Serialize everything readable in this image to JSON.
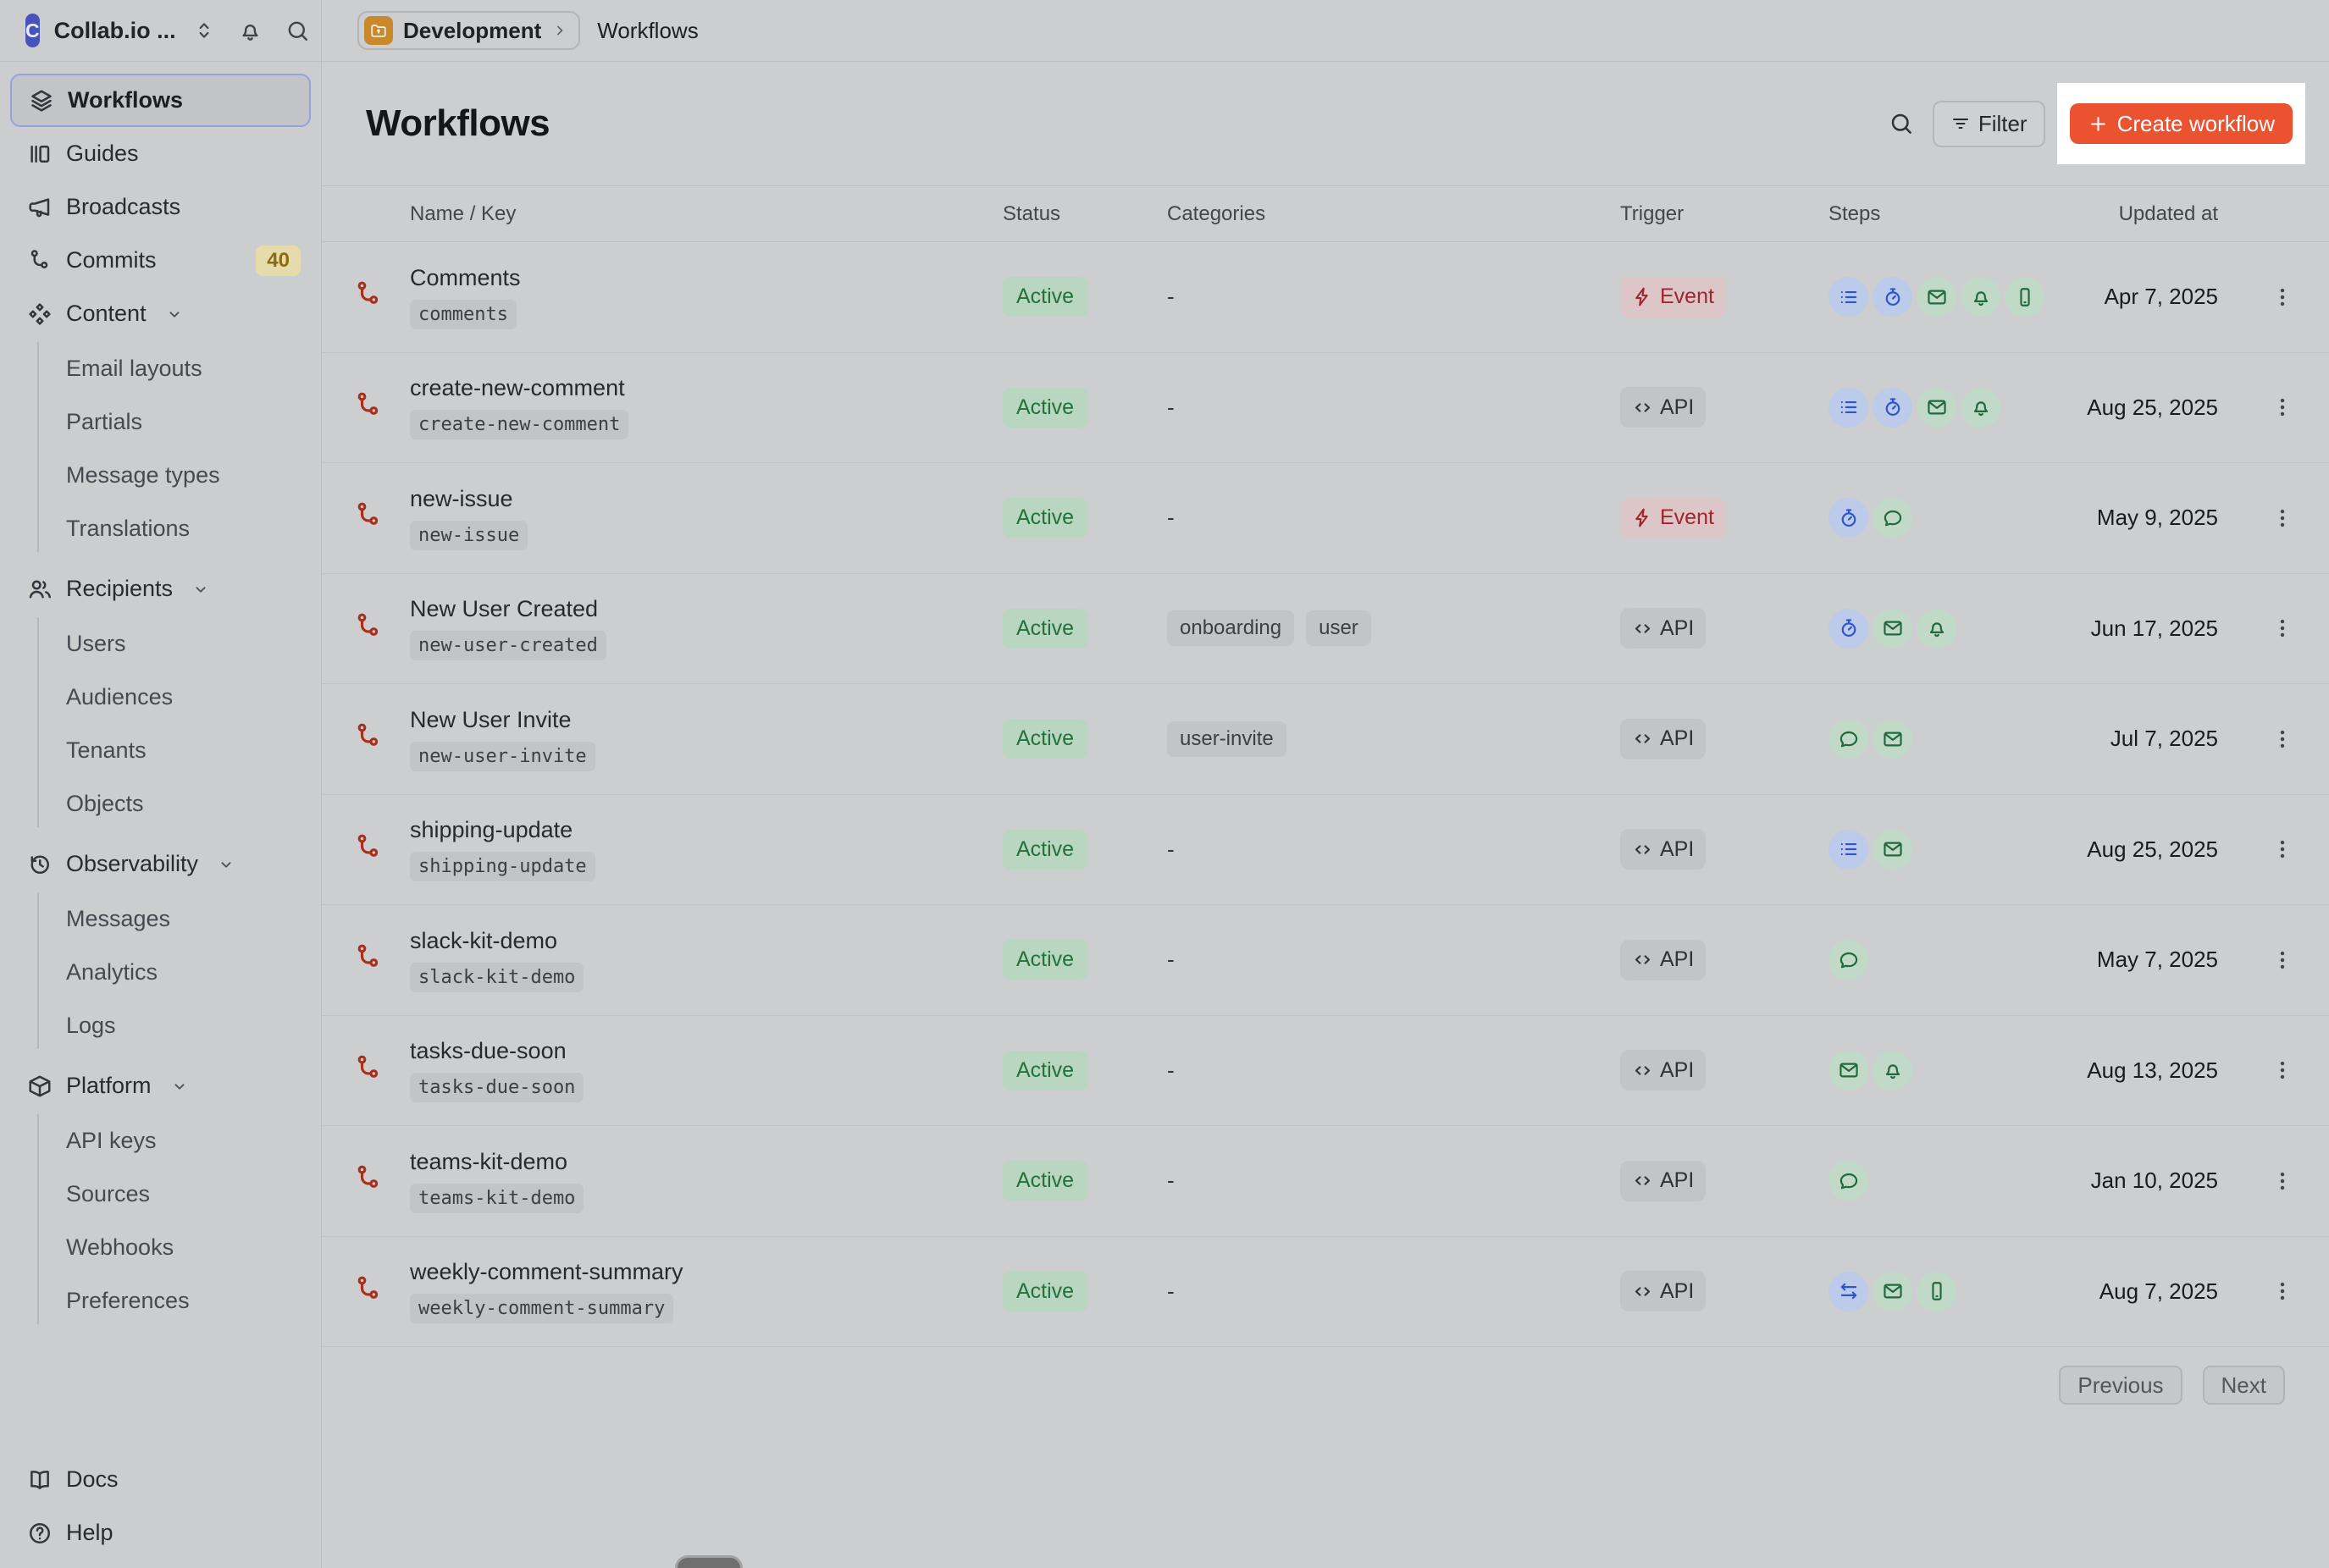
{
  "theme": {
    "accent_orange": "#eb5230",
    "spotlight_white": "#ffffff",
    "logo_blue": "#4653bc",
    "workflow_icon_red": "#ad2d18",
    "selected_border_blue": "#92a4da",
    "status_green_bg": "#b9d6c1",
    "status_green_text": "#227239",
    "event_red_bg": "#dcc6c8",
    "event_red_text": "#a1242f",
    "step_blue_bg": "#bccbe9",
    "step_blue_icon": "#2f55cc",
    "step_green_bg": "#c1d9c7",
    "step_green_icon": "#20693a",
    "commits_badge_bg": "#e6dcab",
    "commits_badge_text": "#8c6a10"
  },
  "sidebar": {
    "workspace": {
      "initial": "C",
      "name": "Collab.io ..."
    },
    "items": [
      {
        "label": "Workflows",
        "icon": "layers",
        "selected": true
      },
      {
        "label": "Guides",
        "icon": "guides"
      },
      {
        "label": "Broadcasts",
        "icon": "megaphone"
      },
      {
        "label": "Commits",
        "icon": "branch",
        "badge": "40"
      },
      {
        "label": "Content",
        "icon": "shapes",
        "expandable": true,
        "children": [
          "Email layouts",
          "Partials",
          "Message types",
          "Translations"
        ]
      },
      {
        "label": "Recipients",
        "icon": "users",
        "expandable": true,
        "children": [
          "Users",
          "Audiences",
          "Tenants",
          "Objects"
        ]
      },
      {
        "label": "Observability",
        "icon": "history",
        "expandable": true,
        "children": [
          "Messages",
          "Analytics",
          "Logs"
        ]
      },
      {
        "label": "Platform",
        "icon": "box",
        "expandable": true,
        "children": [
          "API keys",
          "Sources",
          "Webhooks",
          "Preferences"
        ]
      }
    ],
    "footer_items": [
      {
        "label": "Docs",
        "icon": "book"
      },
      {
        "label": "Help",
        "icon": "help"
      }
    ]
  },
  "topbar": {
    "environment": "Development",
    "page": "Workflows"
  },
  "header": {
    "title": "Workflows",
    "filter_label": "Filter",
    "create_label": "Create workflow"
  },
  "table": {
    "columns": [
      "Name / Key",
      "Status",
      "Categories",
      "Trigger",
      "Steps",
      "Updated at"
    ],
    "empty_placeholder": "-",
    "step_styles": {
      "batch": "blue",
      "delay": "blue",
      "fetch": "blue",
      "email": "green",
      "in_app": "green",
      "push": "green",
      "chat": "green"
    },
    "rows": [
      {
        "name": "Comments",
        "key": "comments",
        "status": "Active",
        "categories": [],
        "trigger": {
          "type": "event",
          "label": "Event"
        },
        "steps": [
          "batch",
          "delay",
          "email",
          "in_app",
          "push"
        ],
        "updated": "Apr 7, 2025"
      },
      {
        "name": "create-new-comment",
        "key": "create-new-comment",
        "status": "Active",
        "categories": [],
        "trigger": {
          "type": "api",
          "label": "API"
        },
        "steps": [
          "batch",
          "delay",
          "email",
          "in_app"
        ],
        "updated": "Aug 25, 2025"
      },
      {
        "name": "new-issue",
        "key": "new-issue",
        "status": "Active",
        "categories": [],
        "trigger": {
          "type": "event",
          "label": "Event"
        },
        "steps": [
          "delay",
          "chat"
        ],
        "updated": "May 9, 2025"
      },
      {
        "name": "New User Created",
        "key": "new-user-created",
        "status": "Active",
        "categories": [
          "onboarding",
          "user"
        ],
        "trigger": {
          "type": "api",
          "label": "API"
        },
        "steps": [
          "delay",
          "email",
          "in_app"
        ],
        "updated": "Jun 17, 2025"
      },
      {
        "name": "New User Invite",
        "key": "new-user-invite",
        "status": "Active",
        "categories": [
          "user-invite"
        ],
        "trigger": {
          "type": "api",
          "label": "API"
        },
        "steps": [
          "chat",
          "email"
        ],
        "updated": "Jul 7, 2025"
      },
      {
        "name": "shipping-update",
        "key": "shipping-update",
        "status": "Active",
        "categories": [],
        "trigger": {
          "type": "api",
          "label": "API"
        },
        "steps": [
          "batch",
          "email"
        ],
        "updated": "Aug 25, 2025"
      },
      {
        "name": "slack-kit-demo",
        "key": "slack-kit-demo",
        "status": "Active",
        "categories": [],
        "trigger": {
          "type": "api",
          "label": "API"
        },
        "steps": [
          "chat"
        ],
        "updated": "May 7, 2025"
      },
      {
        "name": "tasks-due-soon",
        "key": "tasks-due-soon",
        "status": "Active",
        "categories": [],
        "trigger": {
          "type": "api",
          "label": "API"
        },
        "steps": [
          "email",
          "in_app"
        ],
        "updated": "Aug 13, 2025"
      },
      {
        "name": "teams-kit-demo",
        "key": "teams-kit-demo",
        "status": "Active",
        "categories": [],
        "trigger": {
          "type": "api",
          "label": "API"
        },
        "steps": [
          "chat"
        ],
        "updated": "Jan 10, 2025"
      },
      {
        "name": "weekly-comment-summary",
        "key": "weekly-comment-summary",
        "status": "Active",
        "categories": [],
        "trigger": {
          "type": "api",
          "label": "API"
        },
        "steps": [
          "fetch",
          "email",
          "push"
        ],
        "updated": "Aug 7, 2025"
      }
    ]
  },
  "pagination": {
    "previous": "Previous",
    "next": "Next"
  }
}
